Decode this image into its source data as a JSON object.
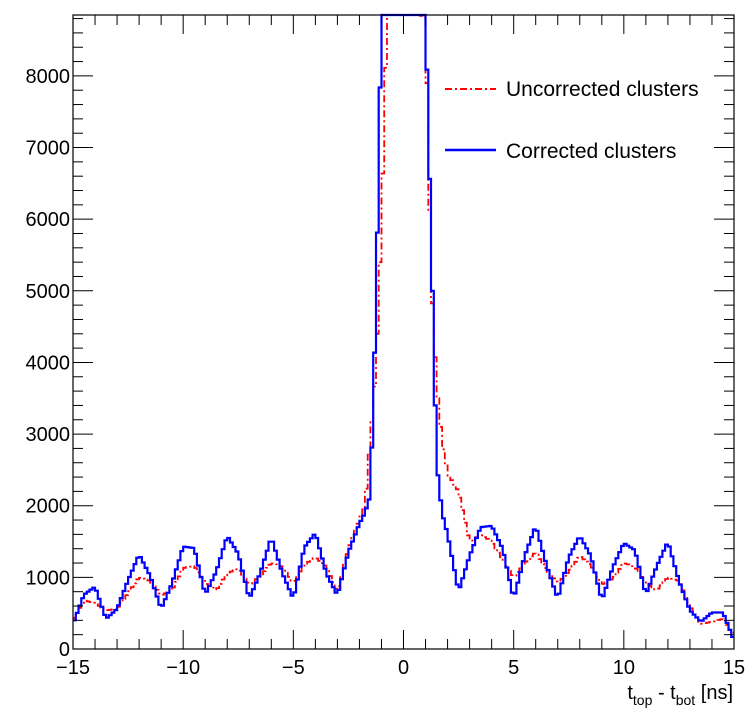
{
  "chart_data": {
    "type": "line",
    "xlabel": {
      "main1": "t",
      "sub1": "top",
      "mid": " - t",
      "sub2": "bot",
      "tail": " [ns]"
    },
    "ylabel": "",
    "xlim": [
      -15,
      15
    ],
    "ylim": [
      0,
      8850
    ],
    "x_ticks": [
      -15,
      -10,
      -5,
      0,
      5,
      10,
      15
    ],
    "y_ticks": [
      0,
      1000,
      2000,
      3000,
      4000,
      5000,
      6000,
      7000,
      8000
    ],
    "x_tick_labels": [
      "−15",
      "−10",
      "−5",
      "0",
      "5",
      "10",
      "15"
    ],
    "y_tick_labels": [
      "0",
      "1000",
      "2000",
      "3000",
      "4000",
      "5000",
      "6000",
      "7000",
      "8000"
    ],
    "legend_position": "top-right",
    "series": [
      {
        "name": "Uncorrected clusters",
        "color": "#ff0000",
        "style": "dash-dot",
        "x": [
          -15,
          -14.5,
          -14,
          -13.5,
          -13,
          -12.5,
          -12,
          -11.5,
          -11,
          -10.5,
          -10,
          -9.5,
          -9,
          -8.5,
          -8,
          -7.5,
          -7,
          -6.5,
          -6,
          -5.5,
          -5,
          -4.5,
          -4,
          -3.5,
          -3,
          -2.5,
          -2,
          -1.75,
          -1.5,
          -1.25,
          -1,
          -0.75,
          0,
          0.75,
          1,
          1.25,
          1.5,
          1.75,
          2,
          2.5,
          3,
          3.5,
          4,
          4.5,
          5,
          5.5,
          6,
          6.5,
          7,
          7.5,
          8,
          8.5,
          9,
          9.5,
          10,
          10.5,
          11,
          11.5,
          12,
          12.5,
          13,
          13.5,
          14,
          14.5,
          15
        ],
        "y": [
          400,
          680,
          640,
          540,
          560,
          780,
          1000,
          950,
          750,
          820,
          1130,
          1160,
          920,
          820,
          1060,
          1120,
          900,
          1020,
          1200,
          1150,
          920,
          1180,
          1280,
          1150,
          800,
          1400,
          1800,
          2000,
          2950,
          3900,
          5900,
          8850,
          8850,
          8850,
          8800,
          5200,
          3700,
          2900,
          2450,
          2200,
          1500,
          1600,
          1500,
          1250,
          1000,
          1200,
          1350,
          1100,
          920,
          1080,
          1300,
          1170,
          900,
          980,
          1200,
          1150,
          920,
          820,
          1000,
          950,
          600,
          350,
          380,
          420,
          200
        ]
      },
      {
        "name": "Corrected clusters",
        "color": "#0000ff",
        "style": "solid",
        "x": [
          -15,
          -14.5,
          -14,
          -13.5,
          -13,
          -12.5,
          -12,
          -11.5,
          -11,
          -10.5,
          -10,
          -9.5,
          -9,
          -8.5,
          -8,
          -7.5,
          -7,
          -6.5,
          -6,
          -5.5,
          -5,
          -4.5,
          -4,
          -3.5,
          -3,
          -2.5,
          -2,
          -1.75,
          -1.5,
          -1.25,
          -1,
          -0.75,
          0,
          0.75,
          1,
          1.25,
          1.5,
          1.75,
          2,
          2.5,
          3,
          3.5,
          4,
          4.5,
          5,
          5.5,
          6,
          6.5,
          7,
          7.5,
          8,
          8.5,
          9,
          9.5,
          10,
          10.5,
          11,
          11.5,
          12,
          12.5,
          13,
          13.5,
          14,
          14.5,
          15
        ],
        "y": [
          350,
          760,
          870,
          420,
          560,
          960,
          1320,
          1020,
          560,
          920,
          1430,
          1410,
          760,
          1080,
          1580,
          1330,
          700,
          1060,
          1560,
          1060,
          700,
          1420,
          1620,
          1050,
          750,
          1350,
          1750,
          1900,
          2150,
          4800,
          8850,
          8850,
          8850,
          8850,
          8850,
          5800,
          2600,
          1900,
          1600,
          800,
          1300,
          1700,
          1720,
          1400,
          700,
          1300,
          1720,
          1160,
          700,
          1280,
          1580,
          1300,
          680,
          1140,
          1480,
          1380,
          760,
          1160,
          1500,
          950,
          540,
          380,
          510,
          510,
          120
        ]
      }
    ]
  }
}
